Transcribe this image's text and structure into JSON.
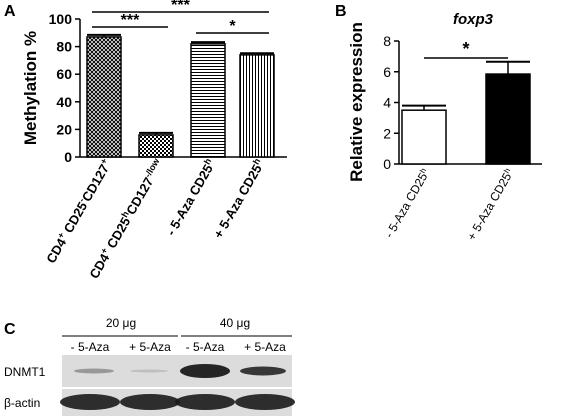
{
  "colors": {
    "axis": "#000000",
    "bar_white": "#ffffff",
    "bar_black": "#000000",
    "blot_bg": "#dcdcdc",
    "band_dark": "#1a1a1a"
  },
  "chart_data": [
    {
      "panel": "A",
      "type": "bar",
      "ylabel": "Methylation %",
      "ylim": [
        0,
        100
      ],
      "yticks": [
        0,
        20,
        40,
        60,
        80,
        100
      ],
      "categories": [
        {
          "main": "CD4",
          "sup1": "+",
          "mid": "CD25",
          "sup2": "-",
          "tail": "CD127",
          "sup3": "+"
        },
        {
          "main": "CD4",
          "sup1": "+",
          "mid": "CD25",
          "sup2": "h",
          "tail": "CD127",
          "sup3": "-/low"
        },
        {
          "main": "- 5-Aza CD25",
          "sup1": "h",
          "mid": "",
          "sup2": "",
          "tail": "",
          "sup3": ""
        },
        {
          "main": "+ 5-Aza CD25",
          "sup1": "h",
          "mid": "",
          "sup2": "",
          "tail": "",
          "sup3": ""
        }
      ],
      "values": [
        87,
        16,
        82,
        74
      ],
      "errors": [
        1.5,
        1.5,
        1.2,
        1.2
      ],
      "patterns": [
        "crosshatch",
        "checker",
        "horizontal",
        "vertical"
      ],
      "significance": [
        {
          "from": 0,
          "to": 1,
          "label": "***"
        },
        {
          "from": 0,
          "to": 3,
          "label": "***"
        },
        {
          "from": 2,
          "to": 3,
          "label": "*"
        }
      ]
    },
    {
      "panel": "B",
      "type": "bar",
      "title": "foxp3",
      "ylabel": "Relative expression",
      "ylim": [
        0,
        8
      ],
      "yticks": [
        0,
        2,
        4,
        6,
        8
      ],
      "categories": [
        {
          "main": "- 5-Aza CD25",
          "sup1": "h"
        },
        {
          "main": "+ 5-Aza CD25",
          "sup1": "h"
        }
      ],
      "values": [
        3.5,
        5.85
      ],
      "errors": [
        0.3,
        0.8
      ],
      "fills": [
        "white",
        "black"
      ],
      "significance": [
        {
          "from": 0,
          "to": 1,
          "label": "*"
        }
      ]
    }
  ],
  "panel_c": {
    "label": "C",
    "groups": [
      "20 μg",
      "40 μg"
    ],
    "lanes": [
      "- 5-Aza",
      "+ 5-Aza",
      "- 5-Aza",
      "+ 5-Aza"
    ],
    "rows": [
      "DNMT1",
      "β-actin"
    ]
  }
}
